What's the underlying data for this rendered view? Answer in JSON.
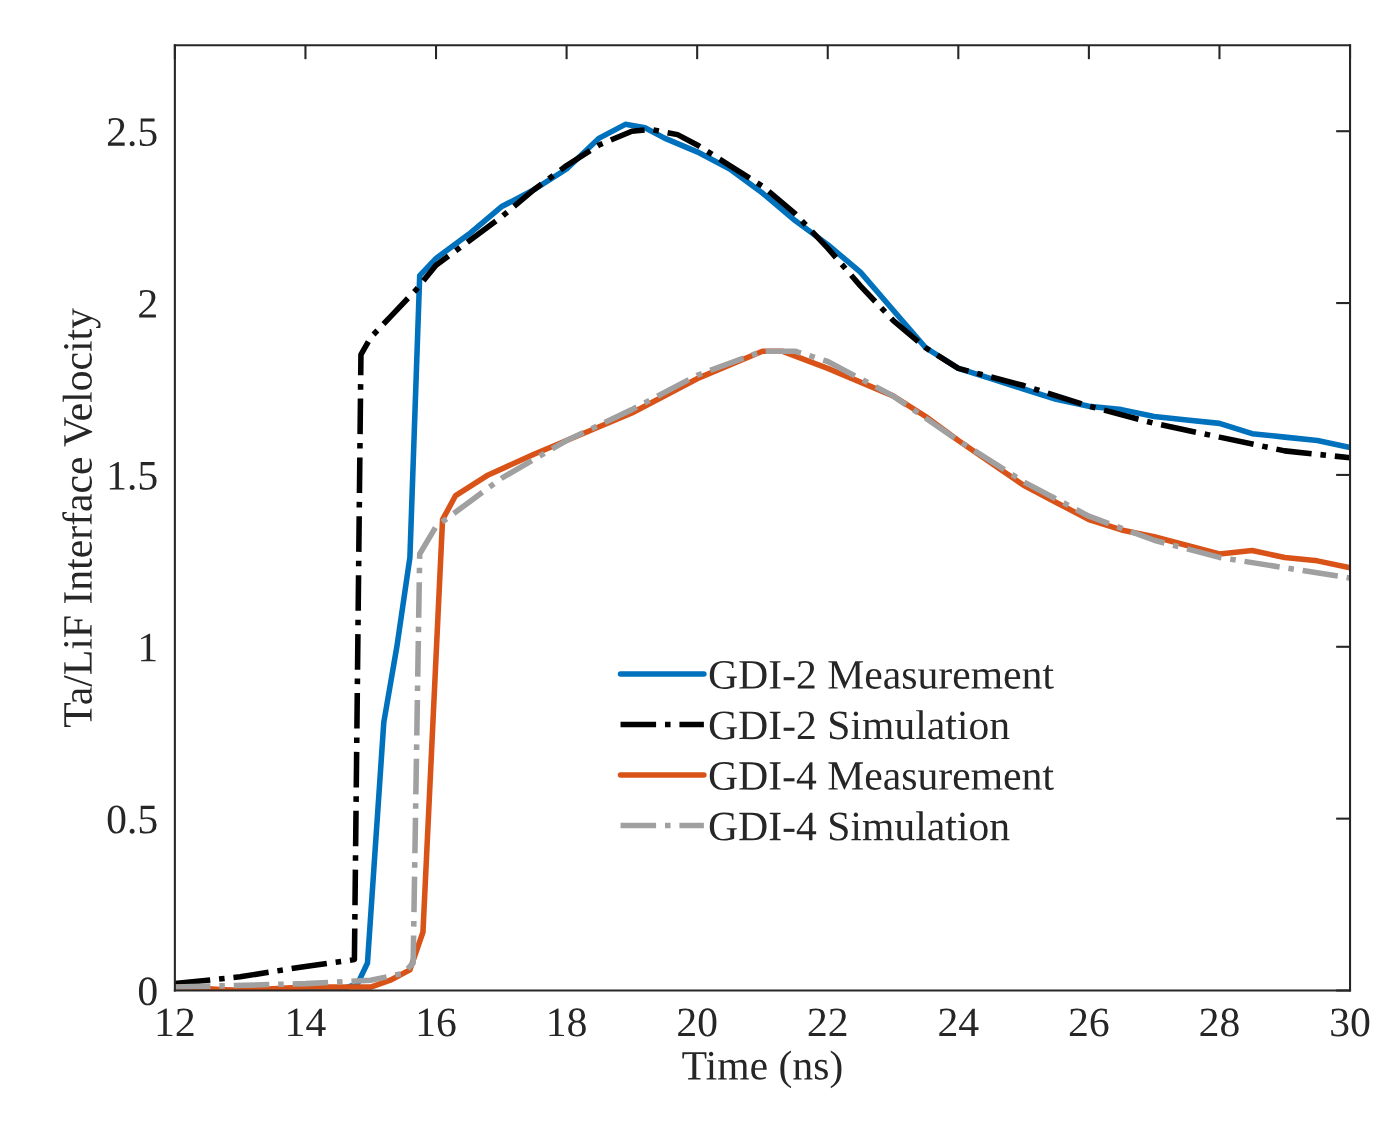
{
  "chart_data": {
    "type": "line",
    "xlabel": "Time (ns)",
    "ylabel": "Ta/LiF Interface Velocity",
    "xlim": [
      12,
      30
    ],
    "ylim": [
      0,
      2.75
    ],
    "xticks": [
      12,
      14,
      16,
      18,
      20,
      22,
      24,
      26,
      28,
      30
    ],
    "yticks": [
      0,
      0.5,
      1,
      1.5,
      2,
      2.5
    ],
    "grid": false,
    "legend": "bottom right",
    "marker": "none",
    "series": [
      {
        "name": "GDI-2 Measurement",
        "color": "#0072bd",
        "line_style": "solid",
        "x": [
          12.1,
          14,
          14.5,
          14.8,
          14.95,
          15.2,
          15.4,
          15.6,
          15.75,
          16,
          16.5,
          17,
          17.5,
          18,
          18.5,
          18.9,
          19.2,
          19.5,
          20,
          20.5,
          21,
          21.5,
          22,
          22.5,
          23,
          23.5,
          24,
          24.5,
          25,
          25.5,
          26,
          26.5,
          27,
          27.5,
          28,
          28.5,
          29,
          29.5,
          30
        ],
        "values": [
          0.0,
          0.0,
          0.0,
          0.02,
          0.08,
          0.78,
          1.0,
          1.26,
          2.08,
          2.13,
          2.2,
          2.28,
          2.33,
          2.39,
          2.48,
          2.52,
          2.51,
          2.48,
          2.44,
          2.39,
          2.32,
          2.24,
          2.17,
          2.09,
          1.98,
          1.87,
          1.81,
          1.78,
          1.75,
          1.72,
          1.7,
          1.69,
          1.67,
          1.66,
          1.65,
          1.62,
          1.61,
          1.6,
          1.58
        ]
      },
      {
        "name": "GDI-2 Simulation",
        "color": "#000000",
        "line_style": "dashdot",
        "x": [
          12,
          13,
          14,
          14.75,
          14.85,
          15,
          15.3,
          15.7,
          16,
          16.5,
          17,
          17.5,
          18,
          18.5,
          19,
          19.3,
          19.7,
          20,
          20.5,
          21,
          21.5,
          22,
          22.5,
          23,
          23.5,
          24,
          25,
          26,
          27,
          28,
          29,
          30
        ],
        "values": [
          0.02,
          0.04,
          0.07,
          0.09,
          1.85,
          1.9,
          1.96,
          2.04,
          2.11,
          2.18,
          2.25,
          2.33,
          2.4,
          2.46,
          2.5,
          2.505,
          2.49,
          2.46,
          2.4,
          2.34,
          2.26,
          2.16,
          2.05,
          1.95,
          1.87,
          1.81,
          1.76,
          1.7,
          1.65,
          1.61,
          1.57,
          1.55
        ]
      },
      {
        "name": "GDI-4 Measurement",
        "color": "#d95319",
        "line_style": "solid",
        "x": [
          12,
          13,
          14,
          15,
          15.3,
          15.6,
          15.8,
          16.1,
          16.3,
          16.8,
          17.5,
          18,
          19,
          20,
          21,
          21.3,
          22,
          23,
          23.5,
          24,
          25,
          25.5,
          26,
          26.5,
          27,
          28,
          28.5,
          29,
          29.5,
          30
        ],
        "values": [
          0.01,
          0.0,
          0.01,
          0.01,
          0.03,
          0.06,
          0.17,
          1.37,
          1.44,
          1.5,
          1.56,
          1.6,
          1.68,
          1.78,
          1.86,
          1.86,
          1.81,
          1.73,
          1.67,
          1.6,
          1.47,
          1.42,
          1.37,
          1.34,
          1.32,
          1.27,
          1.28,
          1.26,
          1.25,
          1.23
        ]
      },
      {
        "name": "GDI-4 Simulation",
        "color": "#a0a0a0",
        "line_style": "dashdot",
        "x": [
          12,
          14,
          15,
          15.5,
          15.65,
          15.75,
          16,
          16.5,
          17,
          18,
          19,
          20,
          21,
          21.5,
          22,
          23,
          24,
          25,
          26,
          27,
          28,
          29,
          30
        ],
        "values": [
          0.01,
          0.02,
          0.03,
          0.05,
          0.08,
          1.27,
          1.35,
          1.42,
          1.49,
          1.6,
          1.69,
          1.79,
          1.86,
          1.86,
          1.83,
          1.73,
          1.6,
          1.48,
          1.38,
          1.31,
          1.26,
          1.23,
          1.2
        ]
      }
    ]
  }
}
